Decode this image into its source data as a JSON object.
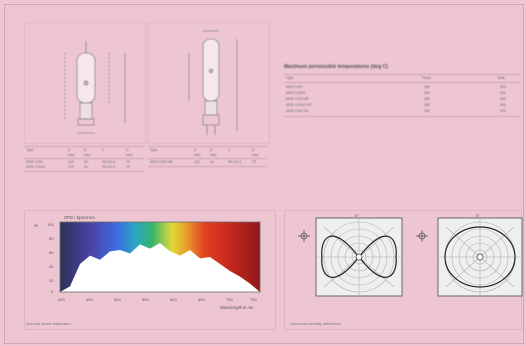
{
  "product_table_left": {
    "headers": [
      "Type",
      "A",
      "B",
      "C",
      "D"
    ],
    "subheaders": [
      "",
      "max",
      "max",
      "",
      "max"
    ],
    "rows": [
      [
        "MSR 1200",
        "115",
        "40",
        "SFc10-4",
        "75"
      ],
      [
        "MSR 1200/2",
        "115",
        "40",
        "SFc10-4",
        "75"
      ]
    ]
  },
  "product_table_right": {
    "headers": [
      "Type",
      "A",
      "B",
      "C",
      "D"
    ],
    "subheaders": [
      "",
      "max",
      "max",
      "",
      "max"
    ],
    "rows": [
      [
        "MSR 1200 HR",
        "115",
        "40",
        "SFc10-4",
        "75"
      ]
    ]
  },
  "temperature_table": {
    "title": "Maximum permissible temperatures (deg C)",
    "columns": [
      "Type",
      "Pinch",
      "Bulb"
    ],
    "rows": [
      [
        "MSR 1200",
        "350",
        "900"
      ],
      [
        "MSR 1200/2",
        "350",
        "900"
      ],
      [
        "MSR 1200 HR",
        "350",
        "900"
      ],
      [
        "MSR 1200/2 HR",
        "350",
        "900"
      ],
      [
        "MSR 1200 SA",
        "350",
        "900"
      ]
    ]
  },
  "spectrum_chart": {
    "label": "SPD / Spectrum",
    "yticks": [
      "100",
      "80",
      "60",
      "40",
      "20",
      "0"
    ],
    "xticks": [
      "400",
      "450",
      "500",
      "550",
      "600",
      "650",
      "700",
      "750"
    ],
    "xlabel": "Wavelength in nm",
    "ylabel_short": "%",
    "caption": "Spectral power distribution"
  },
  "polar_chart": {
    "label_top_left": "0°",
    "label_top_right": "0°",
    "caption": "Luminous intensity distribution"
  },
  "colors": {
    "background": "#eec6d2",
    "chart_fill": "#ffffff",
    "spectrum_dark": "#3a3d5a"
  },
  "chart_data": [
    {
      "type": "area",
      "title": "",
      "xlabel": "Wavelength in nm",
      "ylabel": "%",
      "x": [
        380,
        400,
        420,
        440,
        460,
        480,
        500,
        520,
        540,
        560,
        580,
        600,
        620,
        640,
        660,
        680,
        700,
        720,
        740,
        760,
        780
      ],
      "series": [
        {
          "values": [
            0,
            8,
            40,
            52,
            46,
            58,
            60,
            55,
            68,
            62,
            70,
            58,
            52,
            60,
            48,
            50,
            40,
            30,
            22,
            12,
            0
          ]
        }
      ],
      "xlim": [
        380,
        780
      ],
      "ylim": [
        0,
        100
      ]
    }
  ]
}
